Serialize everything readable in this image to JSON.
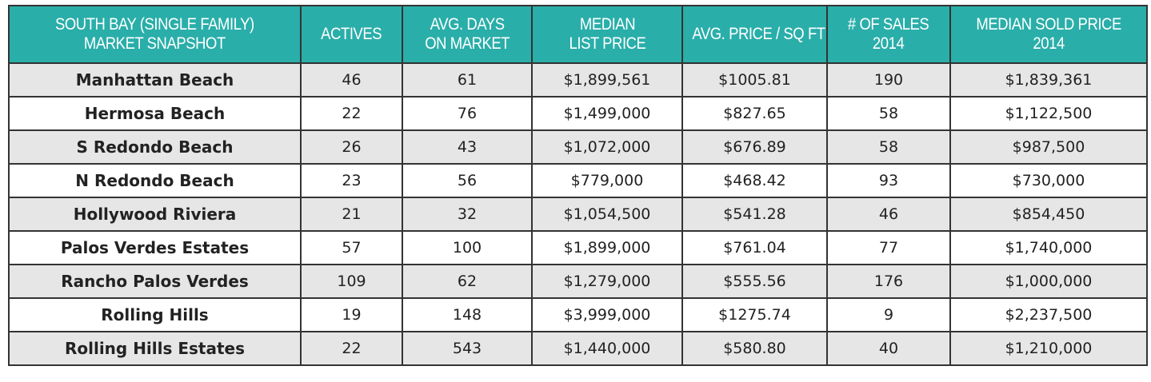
{
  "chart_data": {
    "type": "table",
    "title": "SOUTH BAY (SINGLE FAMILY) MARKET SNAPSHOT",
    "title_lines": [
      "SOUTH BAY (SINGLE FAMILY)",
      "MARKET SNAPSHOT"
    ],
    "columns": [
      {
        "key": "actives",
        "lines": [
          "ACTIVES"
        ]
      },
      {
        "key": "avg_days_on_market",
        "lines": [
          "AVG. DAYS",
          "ON MARKET"
        ]
      },
      {
        "key": "median_list_price",
        "lines": [
          "MEDIAN",
          "LIST PRICE"
        ]
      },
      {
        "key": "avg_price_per_sqft",
        "lines": [
          "AVG. PRICE / SQ FT"
        ]
      },
      {
        "key": "num_sales_2014",
        "lines": [
          "# OF SALES",
          "2014"
        ]
      },
      {
        "key": "median_sold_price_2014",
        "lines": [
          "MEDIAN SOLD PRICE",
          "2014"
        ]
      }
    ],
    "rows": [
      {
        "area": "Manhattan Beach",
        "values": [
          "46",
          "61",
          "$1,899,561",
          "$1005.81",
          "190",
          "$1,839,361"
        ]
      },
      {
        "area": "Hermosa Beach",
        "values": [
          "22",
          "76",
          "$1,499,000",
          "$827.65",
          "58",
          "$1,122,500"
        ]
      },
      {
        "area": "S Redondo Beach",
        "values": [
          "26",
          "43",
          "$1,072,000",
          "$676.89",
          "58",
          "$987,500"
        ]
      },
      {
        "area": "N Redondo Beach",
        "values": [
          "23",
          "56",
          "$779,000",
          "$468.42",
          "93",
          "$730,000"
        ]
      },
      {
        "area": "Hollywood Riviera",
        "values": [
          "21",
          "32",
          "$1,054,500",
          "$541.28",
          "46",
          "$854,450"
        ]
      },
      {
        "area": "Palos Verdes Estates",
        "values": [
          "57",
          "100",
          "$1,899,000",
          "$761.04",
          "77",
          "$1,740,000"
        ]
      },
      {
        "area": "Rancho Palos Verdes",
        "values": [
          "109",
          "62",
          "$1,279,000",
          "$555.56",
          "176",
          "$1,000,000"
        ]
      },
      {
        "area": "Rolling Hills",
        "values": [
          "19",
          "148",
          "$3,999,000",
          "$1275.74",
          "9",
          "$2,237,500"
        ]
      },
      {
        "area": "Rolling Hills Estates",
        "values": [
          "22",
          "543",
          "$1,440,000",
          "$580.80",
          "40",
          "$1,210,000"
        ]
      }
    ]
  },
  "colors": {
    "header_bg": "#2aaea9",
    "header_text": "#ffffff",
    "row_alt_bg": "#e6e6e6",
    "row_bg": "#ffffff",
    "border": "#333333"
  }
}
